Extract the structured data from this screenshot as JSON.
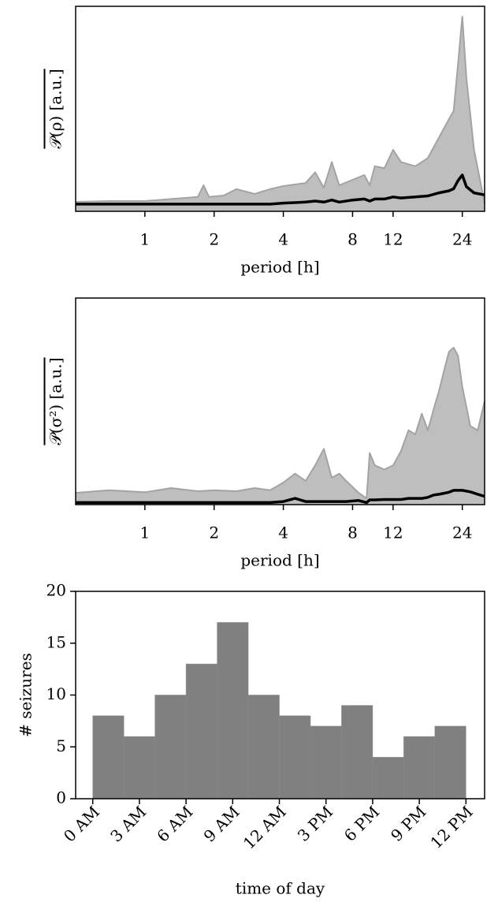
{
  "chart_data": [
    {
      "type": "line",
      "log_x": true,
      "xlabel": "period [h]",
      "ylabel": "𝒫(ρ) [a.u.]",
      "x": [
        0.5,
        0.7,
        1,
        1.3,
        1.7,
        1.8,
        1.9,
        2.2,
        2.5,
        3,
        3.5,
        4,
        5,
        5.5,
        6,
        6.5,
        7,
        8,
        9,
        9.5,
        10,
        11,
        12,
        13,
        15,
        17,
        19,
        21,
        22,
        23,
        24,
        25,
        27,
        30
      ],
      "series": [
        {
          "color": "#a3a3a3",
          "fill": "#bebebe",
          "values": [
            4.6,
            5,
            5,
            6,
            7,
            12.7,
            7,
            7.7,
            10.8,
            8.5,
            10.8,
            12.3,
            13.8,
            19,
            11.5,
            24,
            12.7,
            15.4,
            17.7,
            12.7,
            22,
            21,
            30,
            24,
            22,
            26,
            36,
            45,
            49,
            72,
            95,
            65,
            30,
            4
          ]
        },
        {
          "color": "#000000",
          "values": [
            3.5,
            3.5,
            3.5,
            3.5,
            3.5,
            3.5,
            3.5,
            3.5,
            3.5,
            3.5,
            3.5,
            4,
            4.5,
            5,
            4.5,
            5.5,
            4.5,
            5.5,
            6,
            5,
            6,
            6,
            7,
            6.5,
            7,
            7.5,
            9,
            10,
            11,
            15,
            17.7,
            12,
            9,
            8
          ]
        }
      ],
      "xlim": [
        0.5,
        30
      ],
      "xticks": [
        1,
        2,
        4,
        8,
        12,
        24
      ],
      "ylim": [
        0,
        100
      ]
    },
    {
      "type": "line",
      "log_x": true,
      "xlabel": "period [h]",
      "ylabel": "𝒫(σ²) [a.u.]",
      "x": [
        0.5,
        0.7,
        1,
        1.3,
        1.7,
        2,
        2.5,
        3,
        3.5,
        4,
        4.5,
        5,
        5.5,
        6,
        6.5,
        7,
        7.5,
        8.5,
        9.2,
        9.5,
        10,
        11,
        12,
        13,
        14,
        15,
        16,
        17,
        18,
        19,
        20,
        21,
        22,
        23,
        24,
        26,
        28,
        30
      ],
      "series": [
        {
          "color": "#a3a3a3",
          "fill": "#bebebe",
          "values": [
            5.7,
            7,
            6,
            8,
            6.5,
            7,
            6.5,
            8,
            7,
            10.7,
            15,
            11.5,
            19,
            27,
            13,
            15,
            11.5,
            5.7,
            3,
            25,
            19,
            17,
            19,
            26,
            36,
            34,
            44,
            36,
            46,
            55,
            65,
            74,
            76,
            72,
            57,
            38,
            36,
            50
          ]
        },
        {
          "color": "#000000",
          "values": [
            1,
            1,
            1,
            1,
            1,
            1,
            1,
            1,
            1,
            1.5,
            3,
            1.5,
            1.5,
            1.5,
            1.5,
            1.5,
            1.5,
            2,
            1,
            2.3,
            2.3,
            2.5,
            2.5,
            2.5,
            3,
            3,
            3,
            3.5,
            4.6,
            5,
            5.5,
            6,
            6.9,
            6.9,
            6.9,
            6.2,
            5,
            4
          ]
        }
      ],
      "xlim": [
        0.5,
        30
      ],
      "xticks": [
        1,
        2,
        4,
        8,
        12,
        24
      ],
      "ylim": [
        0,
        100
      ]
    },
    {
      "type": "histogram",
      "xlabel": "time of day",
      "ylabel": "# seizures",
      "color": "#808080",
      "bins": [
        0,
        2,
        4,
        6,
        8,
        10,
        12,
        14,
        16,
        18,
        20,
        22,
        24
      ],
      "values": [
        8,
        6,
        10,
        13,
        17,
        10,
        8,
        7,
        9,
        4,
        6,
        7
      ],
      "xlim": [
        -1.1,
        25.2
      ],
      "xticks": [
        {
          "value": 0,
          "label": "0 AM"
        },
        {
          "value": 3,
          "label": "3 AM"
        },
        {
          "value": 6,
          "label": "6 AM"
        },
        {
          "value": 9,
          "label": "9 AM"
        },
        {
          "value": 12,
          "label": "12 AM"
        },
        {
          "value": 15,
          "label": "3 PM"
        },
        {
          "value": 18,
          "label": "6 PM"
        },
        {
          "value": 21,
          "label": "9 PM"
        },
        {
          "value": 24,
          "label": "12 PM"
        }
      ],
      "ylim": [
        0,
        20
      ],
      "yticks": [
        0,
        5,
        10,
        15,
        20
      ]
    }
  ]
}
